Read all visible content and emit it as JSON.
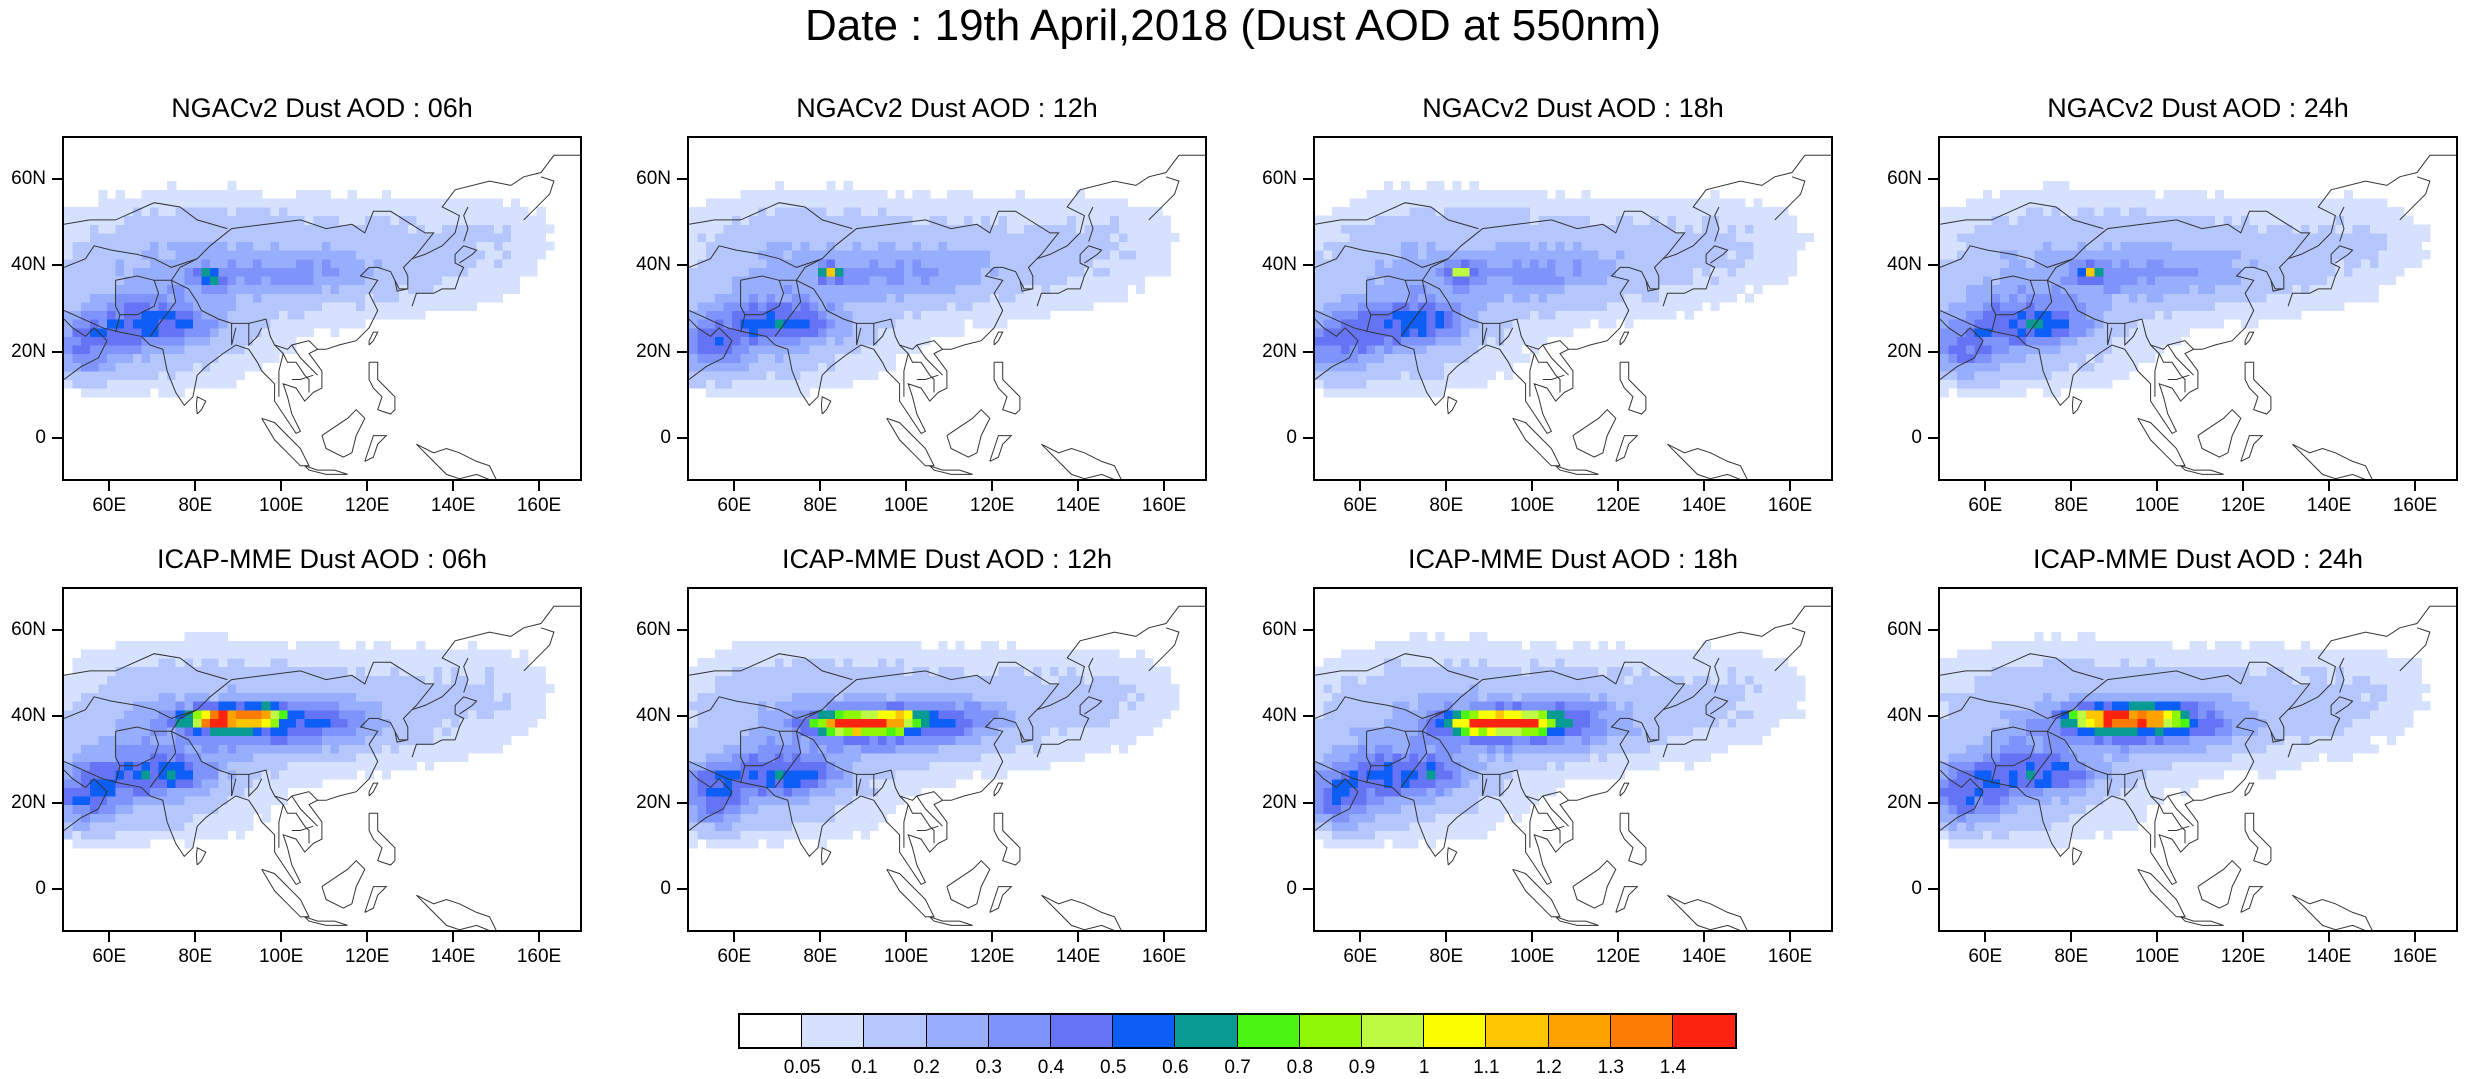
{
  "title": "Date : 19th April,2018 (Dust AOD at 550nm)",
  "panels": [
    {
      "title": "NGACv2 Dust AOD : 06h",
      "model": "ngac",
      "hour": "06h",
      "hot": [
        83,
        38
      ],
      "strength": 0.78
    },
    {
      "title": "NGACv2 Dust AOD : 12h",
      "model": "ngac",
      "hour": "12h",
      "hot": [
        82,
        39
      ],
      "strength": 0.78
    },
    {
      "title": "NGACv2 Dust AOD : 18h",
      "model": "ngac",
      "hour": "18h",
      "hot": [
        83,
        39
      ],
      "strength": 0.85
    },
    {
      "title": "NGACv2 Dust AOD : 24h",
      "model": "ngac",
      "hour": "24h",
      "hot": [
        84,
        39
      ],
      "strength": 0.95
    },
    {
      "title": "ICAP-MME Dust AOD : 06h",
      "model": "icap",
      "hour": "06h",
      "hot": [
        86,
        40
      ],
      "strength": 1.4
    },
    {
      "title": "ICAP-MME Dust AOD : 12h",
      "model": "icap",
      "hour": "12h",
      "hot": [
        88,
        39
      ],
      "strength": 1.4
    },
    {
      "title": "ICAP-MME Dust AOD : 18h",
      "model": "icap",
      "hour": "18h",
      "hot": [
        90,
        39
      ],
      "strength": 1.4
    },
    {
      "title": "ICAP-MME Dust AOD : 24h",
      "model": "icap",
      "hour": "24h",
      "hot": [
        90,
        40
      ],
      "strength": 1.4
    }
  ],
  "axes": {
    "lon_range": [
      49,
      170
    ],
    "lat_range": [
      -10,
      70
    ],
    "x_ticks": [
      "60E",
      "80E",
      "100E",
      "120E",
      "140E",
      "160E"
    ],
    "x_tick_values": [
      60,
      80,
      100,
      120,
      140,
      160
    ],
    "y_ticks": [
      "60N",
      "40N",
      "20N",
      "0"
    ],
    "y_tick_values": [
      60,
      40,
      20,
      0
    ]
  },
  "colorbar": {
    "labels": [
      "0.05",
      "0.1",
      "0.2",
      "0.3",
      "0.4",
      "0.5",
      "0.6",
      "0.7",
      "0.8",
      "0.9",
      "1",
      "1.1",
      "1.2",
      "1.3",
      "1.4"
    ],
    "thresholds": [
      0.05,
      0.1,
      0.2,
      0.3,
      0.4,
      0.5,
      0.6,
      0.7,
      0.8,
      0.9,
      1.0,
      1.1,
      1.2,
      1.3,
      1.4
    ],
    "colors": [
      "#ffffff",
      "#d6e1fe",
      "#b5c6fd",
      "#97aefc",
      "#7f94fa",
      "#6574f5",
      "#0c5ef7",
      "#089a93",
      "#4cf414",
      "#8ef705",
      "#bef944",
      "#fdfe01",
      "#fdc601",
      "#fda201",
      "#fd7c06",
      "#fd2311"
    ]
  }
}
